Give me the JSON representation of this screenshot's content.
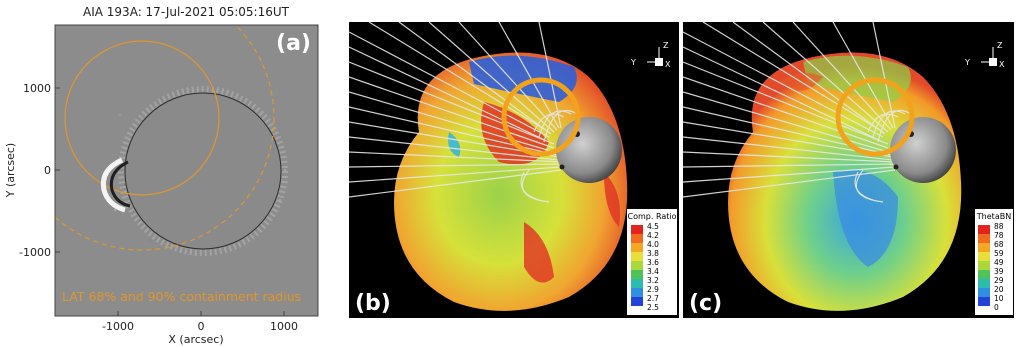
{
  "panel_a": {
    "title": "AIA 193A: 17-Jul-2021 05:05:16UT",
    "label": "(a)",
    "annotation": "LAT 68% and 90% containment radius",
    "xlabel": "X (arcsec)",
    "ylabel": "Y (arcsec)",
    "xticks": [
      "-1000",
      "0",
      "1000"
    ],
    "yticks": [
      "1000",
      "0",
      "-1000"
    ],
    "colors": {
      "containment": "#e0962e",
      "limb": "#3a3a3a",
      "background": "#8a8a8a"
    }
  },
  "panel_b": {
    "label": "(b)",
    "axes": {
      "z": "Z",
      "y": "Y",
      "x": "X"
    },
    "colorbar": {
      "title": "Comp. Ratio",
      "ticks": [
        "4.5",
        "4.2",
        "4.0",
        "3.8",
        "3.6",
        "3.4",
        "3.2",
        "2.9",
        "2.7",
        "2.5"
      ]
    }
  },
  "panel_c": {
    "label": "(c)",
    "axes": {
      "z": "Z",
      "y": "Y",
      "x": "X"
    },
    "colorbar": {
      "title": "ThetaBN",
      "ticks": [
        "88",
        "78",
        "68",
        "59",
        "49",
        "39",
        "29",
        "20",
        "10",
        "0"
      ]
    }
  }
}
